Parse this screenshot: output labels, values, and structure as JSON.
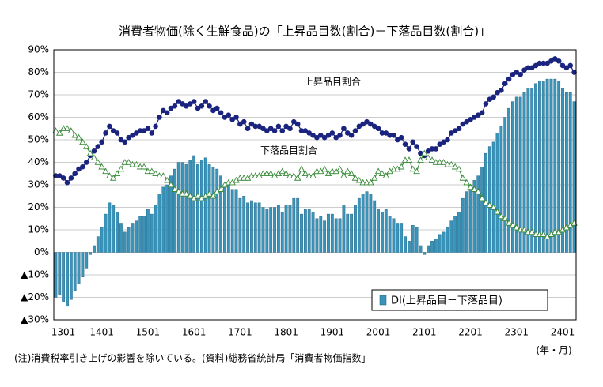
{
  "chart_data": {
    "type": "bar_line",
    "title": "消費者物価(除く生鮮食品)の「上昇品目数(割合)－下落品目数(割合)」",
    "x_label": "(年・月)",
    "footnote": "(注)消費税率引き上げの影響を除いている。(資料)総務省統計局「消費者物価指数」",
    "categories": [
      "1301",
      null,
      null,
      null,
      null,
      null,
      null,
      null,
      null,
      null,
      null,
      null,
      "1401",
      null,
      null,
      null,
      null,
      null,
      null,
      null,
      null,
      null,
      null,
      null,
      "1501",
      null,
      null,
      null,
      null,
      null,
      null,
      null,
      null,
      null,
      null,
      null,
      "1601",
      null,
      null,
      null,
      null,
      null,
      null,
      null,
      null,
      null,
      null,
      null,
      "1701",
      null,
      null,
      null,
      null,
      null,
      null,
      null,
      null,
      null,
      null,
      null,
      "1801",
      null,
      null,
      null,
      null,
      null,
      null,
      null,
      null,
      null,
      null,
      null,
      "1901",
      null,
      null,
      null,
      null,
      null,
      null,
      null,
      null,
      null,
      null,
      null,
      "2001",
      null,
      null,
      null,
      null,
      null,
      null,
      null,
      null,
      null,
      null,
      null,
      "2101",
      null,
      null,
      null,
      null,
      null,
      null,
      null,
      null,
      null,
      null,
      null,
      "2201",
      null,
      null,
      null,
      null,
      null,
      null,
      null,
      null,
      null,
      null,
      null,
      "2301",
      null,
      null,
      null,
      null,
      null,
      null,
      null,
      null,
      null,
      null,
      null,
      "2401",
      null,
      null,
      null
    ],
    "series": [
      {
        "name": "DI(上昇品目－下落品目)",
        "type": "bar",
        "color": "#3a93b8",
        "values": [
          -20,
          -19,
          -22,
          -24,
          -21,
          -17,
          -14,
          -11,
          -7,
          -1,
          3,
          7,
          11,
          17,
          22,
          21,
          18,
          13,
          9,
          11,
          13,
          14,
          16,
          16,
          19,
          17,
          21,
          26,
          29,
          30,
          34,
          37,
          40,
          40,
          39,
          41,
          43,
          39,
          41,
          42,
          39,
          38,
          37,
          34,
          30,
          30,
          28,
          28,
          24,
          25,
          22,
          23,
          22,
          22,
          20,
          19,
          20,
          20,
          21,
          18,
          21,
          21,
          24,
          24,
          17,
          19,
          19,
          18,
          15,
          16,
          14,
          17,
          17,
          15,
          15,
          21,
          17,
          17,
          21,
          24,
          26,
          27,
          26,
          23,
          19,
          18,
          19,
          16,
          15,
          13,
          13,
          7,
          5,
          12,
          11,
          3,
          -1,
          3,
          5,
          6,
          8,
          9,
          11,
          14,
          16,
          18,
          24,
          27,
          30,
          32,
          34,
          38,
          44,
          47,
          49,
          53,
          56,
          60,
          64,
          67,
          69,
          69,
          71,
          73,
          73,
          75,
          76,
          76,
          77,
          77,
          77,
          76,
          73,
          71,
          71,
          67
        ]
      },
      {
        "name": "上昇品目割合",
        "type": "line",
        "marker": "circle",
        "color": "#1a237e",
        "values": [
          34,
          34,
          33,
          31,
          33,
          35,
          37,
          38,
          40,
          43,
          45,
          47,
          49,
          53,
          56,
          54,
          53,
          50,
          49,
          51,
          52,
          53,
          54,
          54,
          55,
          53,
          56,
          60,
          63,
          62,
          64,
          65,
          67,
          66,
          65,
          66,
          67,
          64,
          65,
          67,
          65,
          63,
          64,
          62,
          60,
          61,
          59,
          60,
          57,
          58,
          55,
          57,
          56,
          56,
          55,
          54,
          55,
          54,
          56,
          54,
          56,
          55,
          58,
          57,
          54,
          54,
          53,
          52,
          51,
          52,
          51,
          52,
          53,
          51,
          52,
          55,
          53,
          52,
          54,
          56,
          57,
          58,
          57,
          56,
          55,
          53,
          53,
          52,
          52,
          50,
          51,
          48,
          46,
          49,
          47,
          44,
          43,
          45,
          46,
          46,
          48,
          49,
          50,
          53,
          54,
          55,
          57,
          58,
          59,
          60,
          61,
          62,
          66,
          68,
          69,
          71,
          72,
          75,
          77,
          79,
          80,
          79,
          81,
          82,
          82,
          83,
          84,
          84,
          84,
          85,
          86,
          85,
          83,
          82,
          83,
          80
        ]
      },
      {
        "name": "下落品目割合",
        "type": "line",
        "marker": "triangle",
        "color": "#3a8a3a",
        "values": [
          54,
          53,
          55,
          55,
          54,
          52,
          51,
          49,
          47,
          44,
          42,
          40,
          38,
          36,
          34,
          33,
          35,
          37,
          40,
          40,
          39,
          39,
          38,
          38,
          36,
          36,
          35,
          34,
          34,
          32,
          30,
          28,
          27,
          26,
          26,
          25,
          24,
          25,
          24,
          25,
          26,
          25,
          27,
          28,
          30,
          31,
          31,
          32,
          33,
          33,
          33,
          34,
          34,
          34,
          35,
          35,
          35,
          34,
          35,
          36,
          35,
          34,
          34,
          33,
          37,
          35,
          34,
          34,
          36,
          36,
          37,
          35,
          36,
          36,
          37,
          34,
          36,
          35,
          33,
          32,
          31,
          31,
          31,
          33,
          36,
          35,
          34,
          36,
          37,
          37,
          38,
          41,
          41,
          37,
          36,
          41,
          44,
          42,
          41,
          40,
          40,
          40,
          39,
          39,
          38,
          37,
          33,
          31,
          29,
          28,
          27,
          24,
          22,
          21,
          20,
          18,
          16,
          15,
          13,
          12,
          11,
          10,
          10,
          9,
          9,
          8,
          8,
          8,
          7,
          8,
          9,
          9,
          10,
          11,
          12,
          13
        ]
      }
    ],
    "ylim": [
      -30,
      90
    ],
    "yticks": [
      {
        "value": 90,
        "label": "90%"
      },
      {
        "value": 80,
        "label": "80%"
      },
      {
        "value": 70,
        "label": "70%"
      },
      {
        "value": 60,
        "label": "60%"
      },
      {
        "value": 50,
        "label": "50%"
      },
      {
        "value": 40,
        "label": "40%"
      },
      {
        "value": 30,
        "label": "30%"
      },
      {
        "value": 20,
        "label": "20%"
      },
      {
        "value": 10,
        "label": "10%"
      },
      {
        "value": 0,
        "label": "0%"
      },
      {
        "value": -10,
        "label": "▲10%"
      },
      {
        "value": -20,
        "label": "▲20%"
      },
      {
        "value": -30,
        "label": "▲30%"
      }
    ],
    "grid": true,
    "legend": "lower right"
  }
}
